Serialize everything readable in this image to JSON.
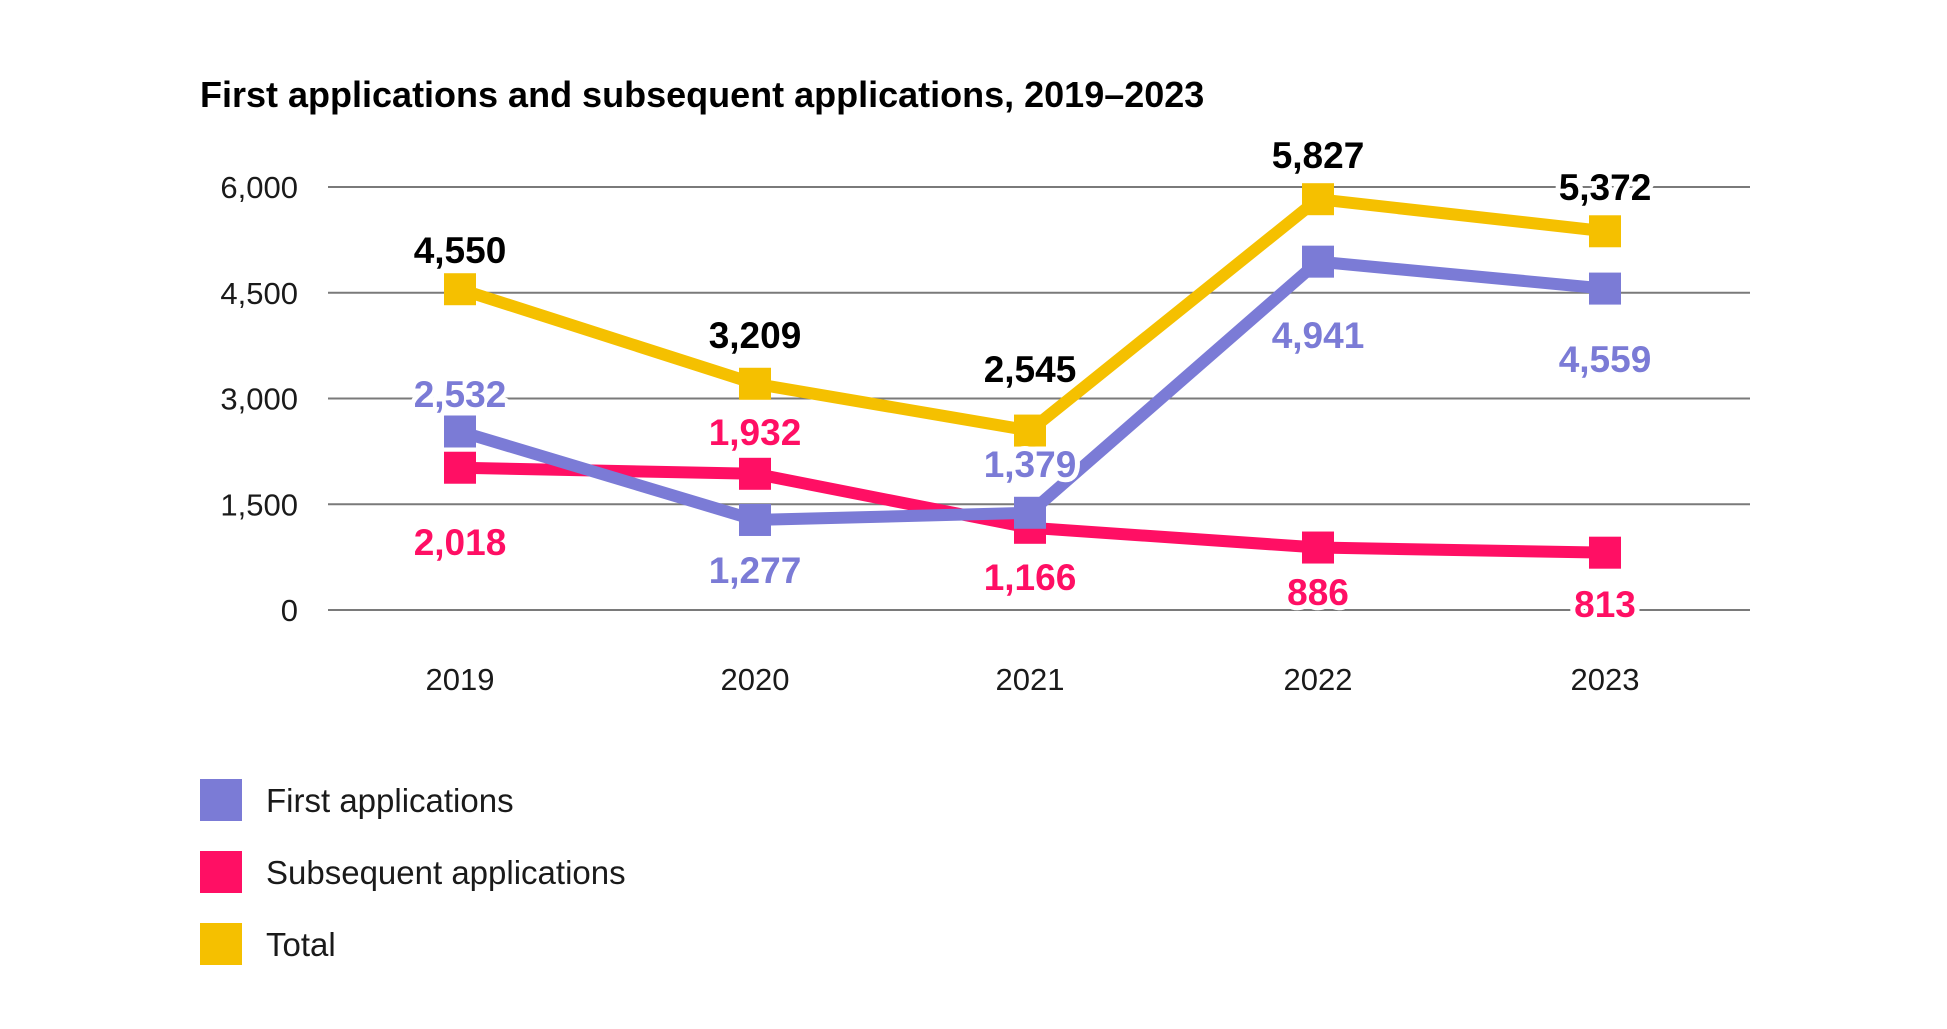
{
  "chart_data": {
    "type": "line",
    "title": "First applications and subsequent applications, 2019–2023",
    "xlabel": "",
    "ylabel": "",
    "categories": [
      "2019",
      "2020",
      "2021",
      "2022",
      "2023"
    ],
    "y_ticks": [
      "0",
      "1,500",
      "3,000",
      "4,500",
      "6,000"
    ],
    "y_tick_values": [
      0,
      1500,
      3000,
      4500,
      6000
    ],
    "ylim": [
      0,
      6000
    ],
    "grid": true,
    "legend_position": "bottom-left",
    "series": [
      {
        "name": "First applications",
        "color": "#7b7bd6",
        "values": [
          2532,
          1277,
          1379,
          4941,
          4559
        ],
        "labels": [
          "2,532",
          "1,277",
          "1,379",
          "4,941",
          "4,559"
        ]
      },
      {
        "name": "Subsequent applications",
        "color": "#ff0f64",
        "values": [
          2018,
          1932,
          1166,
          886,
          813
        ],
        "labels": [
          "2,018",
          "1,932",
          "1,166",
          "886",
          "813"
        ]
      },
      {
        "name": "Total",
        "color": "#f5c000",
        "values": [
          4550,
          3209,
          2545,
          5827,
          5372
        ],
        "labels": [
          "4,550",
          "3,209",
          "2,545",
          "5,827",
          "5,372"
        ]
      }
    ],
    "total_label_color": "#000000"
  }
}
